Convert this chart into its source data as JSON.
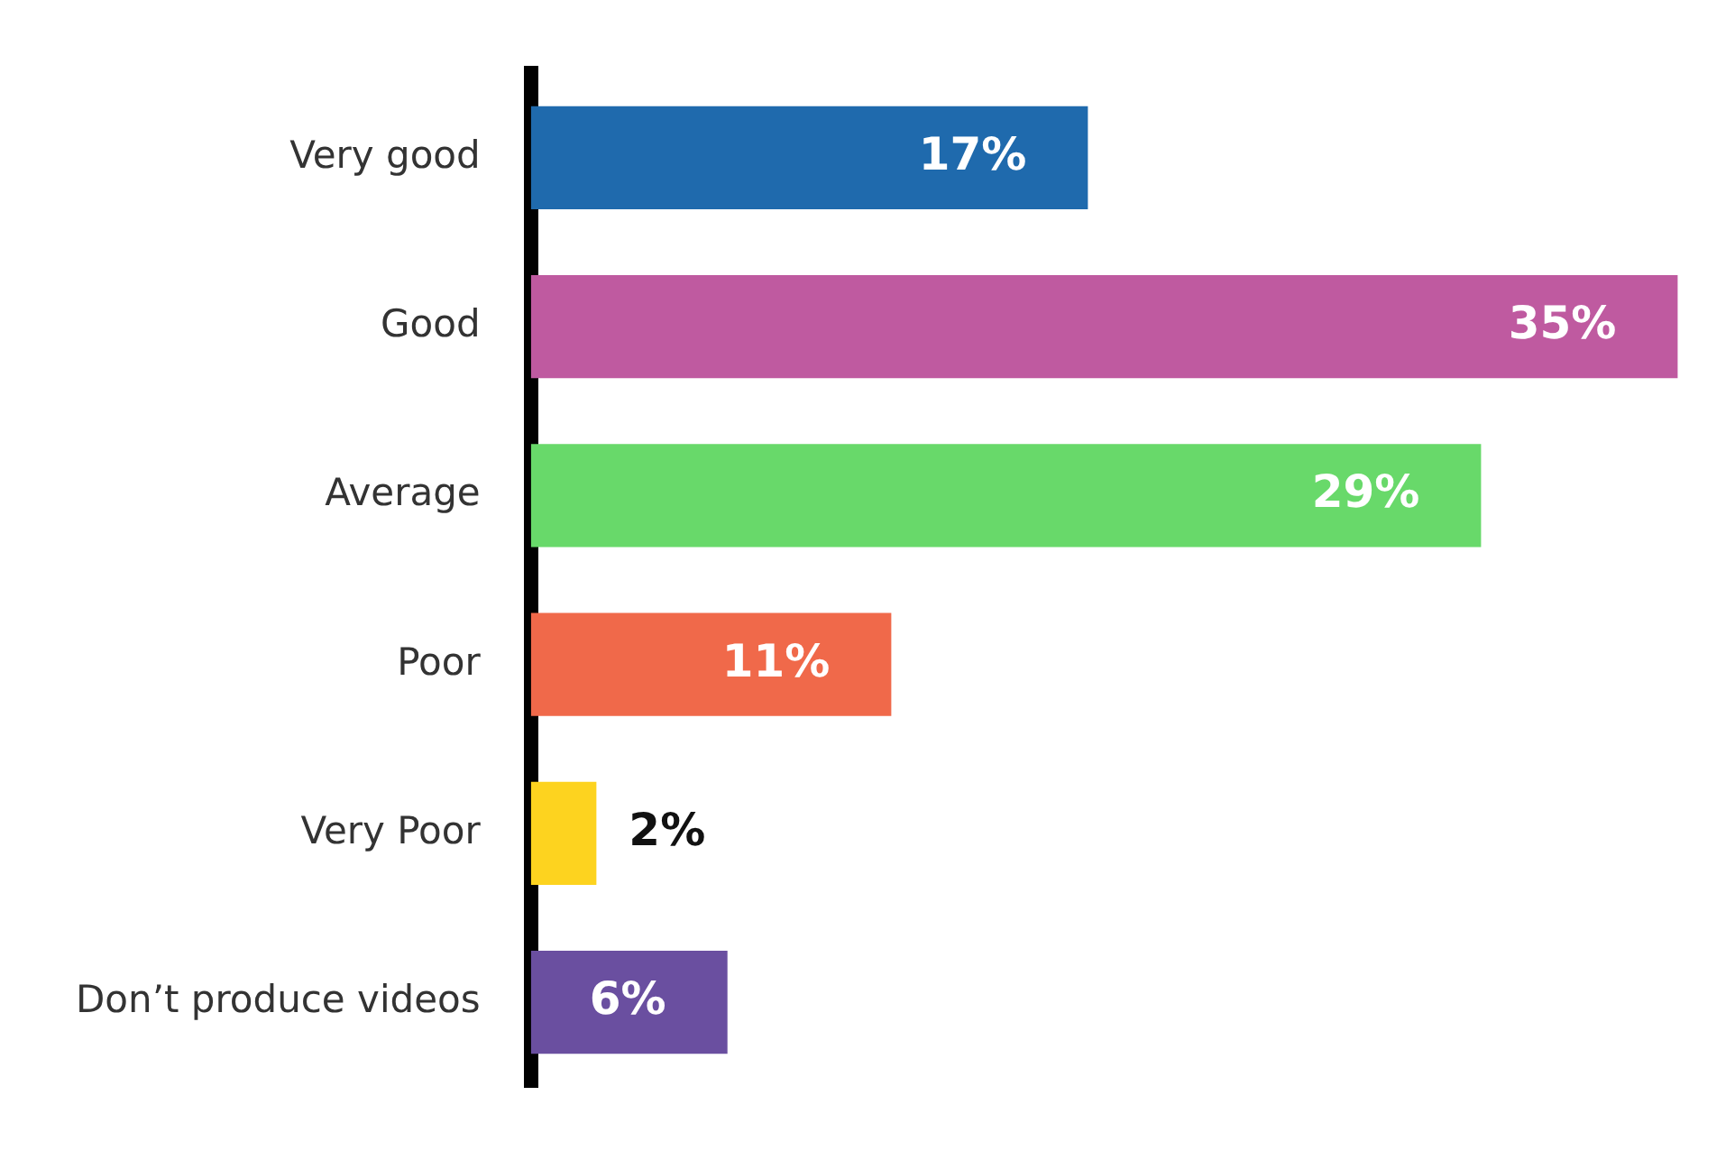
{
  "chart_data": {
    "type": "bar",
    "orientation": "horizontal",
    "categories": [
      "Very good",
      "Good",
      "Average",
      "Poor",
      "Very Poor",
      "Don’t produce videos"
    ],
    "values": [
      17,
      35,
      29,
      11,
      2,
      6
    ],
    "colors": [
      "#1f6aad",
      "#bf5aa0",
      "#68d96a",
      "#f0694a",
      "#fdd31f",
      "#6a4fa0"
    ],
    "data_labels": true,
    "value_labels": [
      "17%",
      "35%",
      "29%",
      "11%",
      "2%",
      "6%"
    ],
    "legend": false
  }
}
